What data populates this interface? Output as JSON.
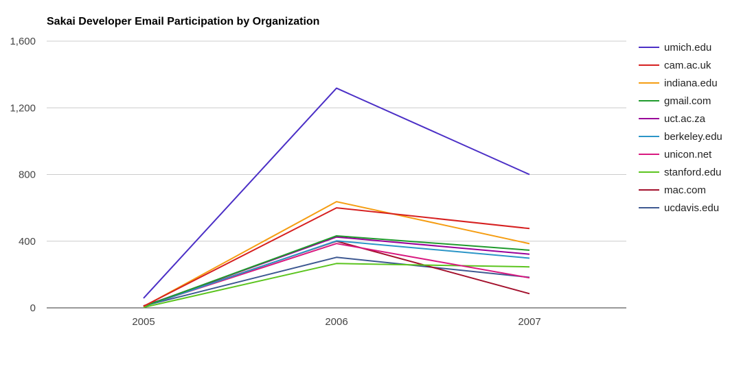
{
  "chart_data": {
    "type": "line",
    "title": "Sakai Developer Email Participation by Organization",
    "xlabel": "",
    "ylabel": "",
    "categories": [
      "2005",
      "2006",
      "2007"
    ],
    "ylim": [
      0,
      1600
    ],
    "yticks": [
      0,
      400,
      800,
      1200,
      1600
    ],
    "ytick_labels": [
      "0",
      "400",
      "800",
      "1,200",
      "1,600"
    ],
    "grid": true,
    "legend_position": "right",
    "series": [
      {
        "name": "umich.edu",
        "color": "#4b2fc6",
        "values": [
          58,
          1318,
          800
        ]
      },
      {
        "name": "cam.ac.uk",
        "color": "#d62020",
        "values": [
          10,
          600,
          476
        ]
      },
      {
        "name": "indiana.edu",
        "color": "#f59d12",
        "values": [
          8,
          637,
          385
        ]
      },
      {
        "name": "gmail.com",
        "color": "#1f9a2c",
        "values": [
          8,
          432,
          346
        ]
      },
      {
        "name": "uct.ac.za",
        "color": "#990099",
        "values": [
          10,
          425,
          322
        ]
      },
      {
        "name": "berkeley.edu",
        "color": "#2b95c7",
        "values": [
          8,
          402,
          298
        ]
      },
      {
        "name": "unicon.net",
        "color": "#d8187f",
        "values": [
          10,
          386,
          180
        ]
      },
      {
        "name": "stanford.edu",
        "color": "#5bc41e",
        "values": [
          3,
          266,
          246
        ]
      },
      {
        "name": "mac.com",
        "color": "#a3102c",
        "values": [
          12,
          400,
          85
        ]
      },
      {
        "name": "ucdavis.edu",
        "color": "#3d5891",
        "values": [
          12,
          303,
          183
        ]
      }
    ]
  }
}
